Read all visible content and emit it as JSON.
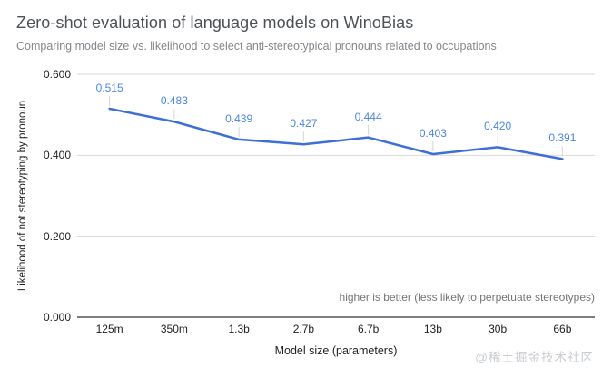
{
  "chart_data": {
    "type": "line",
    "title": "Zero-shot evaluation of language models on WinoBias",
    "subtitle": "Comparing model size vs. likelihood to select anti-stereotypical pronouns related to occupations",
    "categories": [
      "125m",
      "350m",
      "1.3b",
      "2.7b",
      "6.7b",
      "13b",
      "30b",
      "66b"
    ],
    "series": [
      {
        "name": "Likelihood of not stereotyping by pronoun",
        "values": [
          0.515,
          0.483,
          0.439,
          0.427,
          0.444,
          0.403,
          0.42,
          0.391
        ]
      }
    ],
    "data_labels": [
      "0.515",
      "0.483",
      "0.439",
      "0.427",
      "0.444",
      "0.403",
      "0.420",
      "0.391"
    ],
    "xlabel": "Model size (parameters)",
    "ylabel": "Likelihood of not stereotyping by pronoun",
    "ylim": [
      0,
      0.6
    ],
    "yticks": [
      0,
      0.2,
      0.4,
      0.6
    ],
    "ytick_labels": [
      "0.000",
      "0.200",
      "0.400",
      "0.600"
    ],
    "grid": true,
    "legend": "none",
    "annotation": "higher is better (less likely to perpetuate stereotypes)",
    "colors": {
      "line": "#3e6fd8",
      "data_label": "#4a86e8",
      "leader": "#d5d5d5",
      "grid": "#d9d9d9",
      "axis": "#333333"
    }
  },
  "watermark": {
    "text": "@稀土掘金技术社区"
  }
}
